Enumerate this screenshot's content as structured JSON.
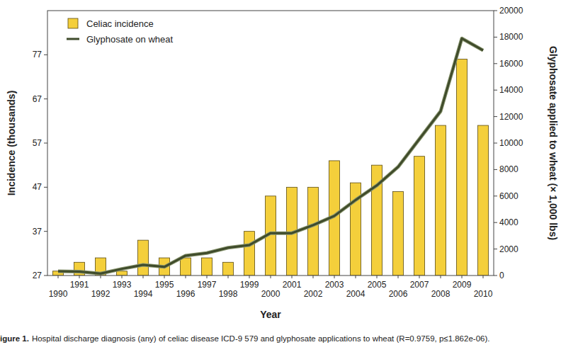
{
  "chart_data": {
    "type": "bar",
    "caption_label": "igure 1.",
    "caption": "Hospital discharge diagnosis (any) of celiac disease ICD-9 579 and glyphosate applications to wheat (R=0.9759, p≤1.862e-06).",
    "x_label": "Year",
    "y_label": "Incidence (thousands)",
    "y2_label": "Glyphosate applied to wheat (× 1,000 lbs)",
    "categories": [
      "1990",
      "1991",
      "1992",
      "1993",
      "1994",
      "1995",
      "1996",
      "1997",
      "1998",
      "1999",
      "2000",
      "2001",
      "2002",
      "2003",
      "2004",
      "2005",
      "2006",
      "2007",
      "2008",
      "2009",
      "2010"
    ],
    "series": [
      {
        "name": "Celiac incidence",
        "type": "bar",
        "color": "#f4cf3b",
        "values": [
          28,
          30,
          31,
          28,
          35,
          31,
          31,
          31,
          30,
          37,
          45,
          47,
          47,
          53,
          48,
          52,
          46,
          54,
          61,
          76,
          61
        ]
      },
      {
        "name": "Glyphosate on wheat",
        "type": "line",
        "color": "#3f4b2b",
        "axis": "y2",
        "values": [
          320,
          300,
          150,
          500,
          800,
          650,
          1500,
          1700,
          2100,
          2300,
          3200,
          3200,
          3800,
          4500,
          5700,
          6800,
          8200,
          10300,
          12400,
          17900,
          17000
        ]
      }
    ],
    "ylim": [
      27,
      87
    ],
    "yticks": [
      27,
      37,
      47,
      57,
      67,
      77
    ],
    "y2lim": [
      0,
      20000
    ],
    "y2ticks": [
      0,
      2000,
      4000,
      6000,
      8000,
      10000,
      12000,
      14000,
      16000,
      18000,
      20000
    ],
    "legend": "top-left",
    "grid": false
  }
}
